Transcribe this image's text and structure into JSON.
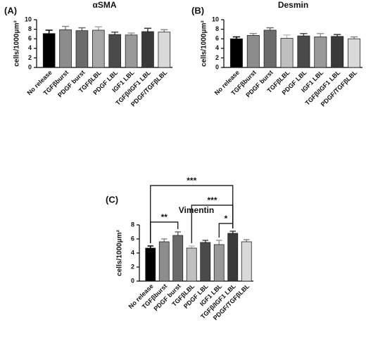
{
  "chart_data": [
    {
      "type": "bar",
      "panel_label": "(A)",
      "title": "αSMA",
      "ylabel": "cells/1000μm²",
      "categories": [
        "No release",
        "TGFβburst",
        "PDGF burst",
        "TGFβLBL",
        "PDGF LBL",
        "IGF1 LBL",
        "TGFβ/IGF1 LBL",
        "PDGF/TGFβLBL"
      ],
      "values": [
        7.1,
        7.9,
        7.7,
        7.8,
        6.9,
        6.8,
        7.5,
        7.4
      ],
      "err": [
        0.7,
        0.7,
        0.6,
        0.7,
        0.5,
        0.4,
        0.7,
        0.5
      ],
      "colors": [
        "#000000",
        "#8c8c8c",
        "#6b6b6b",
        "#a6a6a6",
        "#4a4a4a",
        "#999999",
        "#3a3a3a",
        "#d9d9d9"
      ],
      "ylim": [
        0,
        10
      ],
      "yticks": [
        0,
        2,
        4,
        6,
        8,
        10
      ]
    },
    {
      "type": "bar",
      "panel_label": "(B)",
      "title": "Desmin",
      "ylabel": "cells/1000μm²",
      "categories": [
        "No release",
        "TGFβburst",
        "PDGF burst",
        "TGFβLBL",
        "PDGF LBL",
        "IGF1 LBL",
        "TGFβ/IGF1 LBL",
        "PDGF/TGFβLBL"
      ],
      "values": [
        6.0,
        6.7,
        7.8,
        6.1,
        6.6,
        6.4,
        6.5,
        6.0
      ],
      "err": [
        0.4,
        0.4,
        0.5,
        0.7,
        0.5,
        0.7,
        0.4,
        0.4
      ],
      "colors": [
        "#000000",
        "#8c8c8c",
        "#6b6b6b",
        "#bfbfbf",
        "#4a4a4a",
        "#999999",
        "#3a3a3a",
        "#d9d9d9"
      ],
      "ylim": [
        0,
        10
      ],
      "yticks": [
        0,
        2,
        4,
        6,
        8,
        10
      ]
    },
    {
      "type": "bar",
      "panel_label": "(C)",
      "title": "Vimentin",
      "ylabel": "cells/1000μm²",
      "categories": [
        "No release",
        "TGFβburst",
        "PDGF burst",
        "TGFβLBL",
        "PDGF LBL",
        "IGF1 LBL",
        "TGFβ/IGF1 LBL",
        "PDGF/TGFβLBL"
      ],
      "values": [
        4.7,
        5.6,
        6.5,
        4.7,
        5.5,
        5.2,
        6.8,
        5.6
      ],
      "err": [
        0.3,
        0.4,
        0.5,
        0.3,
        0.3,
        0.6,
        0.3,
        0.3
      ],
      "colors": [
        "#000000",
        "#8c8c8c",
        "#6b6b6b",
        "#bfbfbf",
        "#4a4a4a",
        "#999999",
        "#3a3a3a",
        "#d9d9d9"
      ],
      "ylim": [
        0,
        8
      ],
      "yticks": [
        0,
        2,
        4,
        6,
        8
      ],
      "significance": [
        {
          "from": 0,
          "to": 6,
          "label": "***"
        },
        {
          "from": 3,
          "to": 6,
          "label": "***"
        },
        {
          "from": 0,
          "to": 2,
          "label": "**"
        },
        {
          "from": 5,
          "to": 6,
          "label": "*"
        }
      ]
    }
  ]
}
